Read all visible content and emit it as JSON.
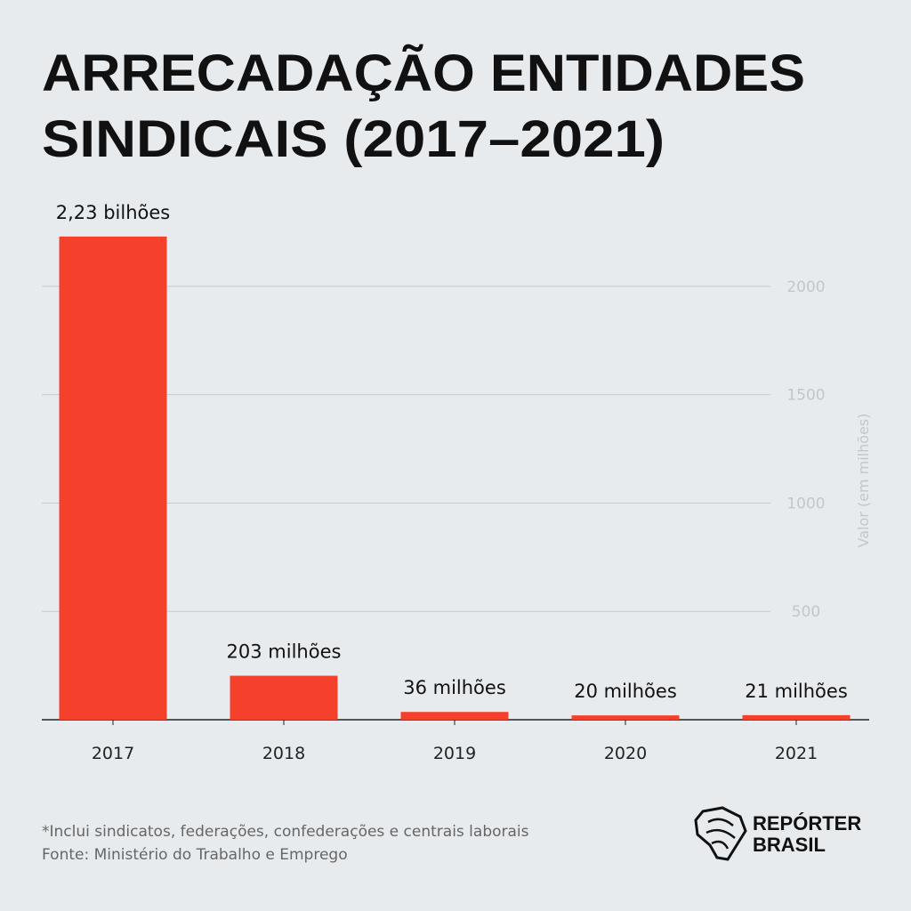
{
  "chart_data": {
    "type": "bar",
    "title": [
      "ARRECADAÇÃO ENTIDADES",
      "SINDICAIS (2017–2021)"
    ],
    "y_label": "Valor (em milhões)",
    "categories": [
      "2017",
      "2018",
      "2019",
      "2020",
      "2021"
    ],
    "values": [
      2230,
      203,
      36,
      20,
      21
    ],
    "value_labels": [
      "2,23 bilhões",
      "203 milhões",
      "36 milhões",
      "20 milhões",
      "21 milhões"
    ],
    "color": "#f5402c",
    "ylim": [
      0,
      2250
    ],
    "yticks": [
      500,
      1000,
      1500,
      2000
    ],
    "grid": true,
    "notes": [
      "*Inclui sindicatos, federações, confederações e centrais laborais",
      "Fonte: Ministério do Trabalho e Emprego"
    ]
  },
  "branding": {
    "logo": [
      "REPÓRTER",
      "BRASIL"
    ]
  }
}
